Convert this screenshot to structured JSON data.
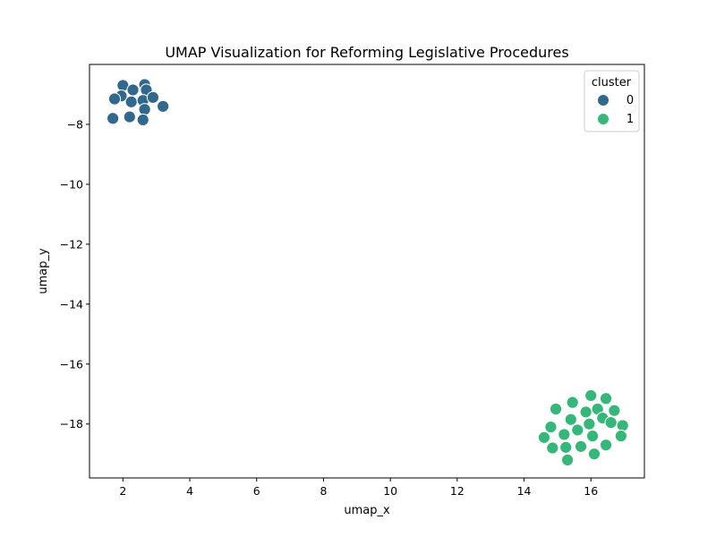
{
  "chart_data": {
    "type": "scatter",
    "title": "UMAP Visualization for Reforming Legislative Procedures",
    "xlabel": "umap_x",
    "ylabel": "umap_y",
    "xlim": [
      1.0,
      17.6
    ],
    "ylim": [
      -19.8,
      -6.0
    ],
    "xticks": [
      2,
      4,
      6,
      8,
      10,
      12,
      14,
      16
    ],
    "yticks": [
      -8,
      -10,
      -12,
      -14,
      -16,
      -18
    ],
    "x_tick_labels": [
      "2",
      "4",
      "6",
      "8",
      "10",
      "12",
      "14",
      "16"
    ],
    "y_tick_labels": [
      "−8",
      "−10",
      "−12",
      "−14",
      "−16",
      "−18"
    ],
    "grid": false,
    "legend": {
      "title": "cluster",
      "placement": "top-right",
      "entries": [
        {
          "label": "0",
          "color": "#31688e"
        },
        {
          "label": "1",
          "color": "#35b779"
        }
      ]
    },
    "series": [
      {
        "name": "0",
        "color": "#31688e",
        "points": [
          [
            2.0,
            -6.7
          ],
          [
            2.65,
            -6.67
          ],
          [
            2.7,
            -6.85
          ],
          [
            1.95,
            -7.05
          ],
          [
            2.3,
            -6.85
          ],
          [
            1.75,
            -7.15
          ],
          [
            2.25,
            -7.25
          ],
          [
            2.6,
            -7.2
          ],
          [
            2.9,
            -7.1
          ],
          [
            3.2,
            -7.4
          ],
          [
            2.65,
            -7.5
          ],
          [
            2.2,
            -7.75
          ],
          [
            1.7,
            -7.8
          ],
          [
            2.6,
            -7.85
          ]
        ]
      },
      {
        "name": "1",
        "color": "#35b779",
        "points": [
          [
            16.0,
            -17.05
          ],
          [
            16.45,
            -17.15
          ],
          [
            15.45,
            -17.28
          ],
          [
            14.95,
            -17.5
          ],
          [
            16.2,
            -17.5
          ],
          [
            15.85,
            -17.6
          ],
          [
            16.7,
            -17.55
          ],
          [
            15.4,
            -17.85
          ],
          [
            16.35,
            -17.8
          ],
          [
            16.6,
            -17.95
          ],
          [
            16.95,
            -18.05
          ],
          [
            15.95,
            -18.0
          ],
          [
            14.8,
            -18.1
          ],
          [
            15.6,
            -18.2
          ],
          [
            15.2,
            -18.35
          ],
          [
            14.6,
            -18.45
          ],
          [
            16.05,
            -18.4
          ],
          [
            16.9,
            -18.4
          ],
          [
            15.7,
            -18.75
          ],
          [
            15.25,
            -18.78
          ],
          [
            14.85,
            -18.8
          ],
          [
            16.45,
            -18.7
          ],
          [
            16.1,
            -19.0
          ],
          [
            15.3,
            -19.2
          ]
        ]
      }
    ]
  }
}
